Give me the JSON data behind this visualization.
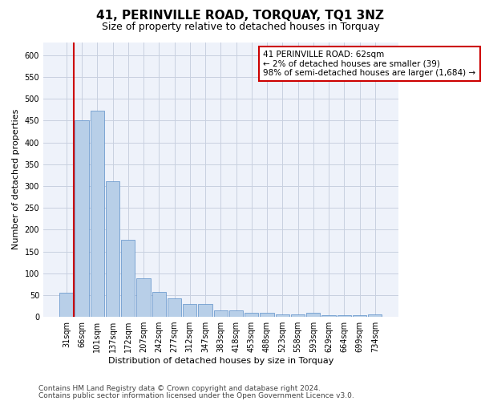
{
  "title": "41, PERINVILLE ROAD, TORQUAY, TQ1 3NZ",
  "subtitle": "Size of property relative to detached houses in Torquay",
  "xlabel": "Distribution of detached houses by size in Torquay",
  "ylabel": "Number of detached properties",
  "categories": [
    "31sqm",
    "66sqm",
    "101sqm",
    "137sqm",
    "172sqm",
    "207sqm",
    "242sqm",
    "277sqm",
    "312sqm",
    "347sqm",
    "383sqm",
    "418sqm",
    "453sqm",
    "488sqm",
    "523sqm",
    "558sqm",
    "593sqm",
    "629sqm",
    "664sqm",
    "699sqm",
    "734sqm"
  ],
  "values": [
    55,
    450,
    472,
    311,
    176,
    88,
    58,
    42,
    30,
    30,
    15,
    15,
    10,
    10,
    6,
    6,
    9,
    4,
    4,
    4,
    5
  ],
  "bar_color": "#b8cfe8",
  "bar_edge_color": "#5b8fc9",
  "highlight_line_color": "#cc0000",
  "annotation_line1": "41 PERINVILLE ROAD: 62sqm",
  "annotation_line2": "← 2% of detached houses are smaller (39)",
  "annotation_line3": "98% of semi-detached houses are larger (1,684) →",
  "annotation_box_color": "#ffffff",
  "annotation_box_edge_color": "#cc0000",
  "ylim": [
    0,
    630
  ],
  "yticks": [
    0,
    50,
    100,
    150,
    200,
    250,
    300,
    350,
    400,
    450,
    500,
    550,
    600
  ],
  "footer_line1": "Contains HM Land Registry data © Crown copyright and database right 2024.",
  "footer_line2": "Contains public sector information licensed under the Open Government Licence v3.0.",
  "background_color": "#eef2fa",
  "grid_color": "#c8d0e0",
  "title_fontsize": 11,
  "subtitle_fontsize": 9,
  "axis_label_fontsize": 8,
  "tick_fontsize": 7,
  "annotation_fontsize": 7.5,
  "footer_fontsize": 6.5
}
